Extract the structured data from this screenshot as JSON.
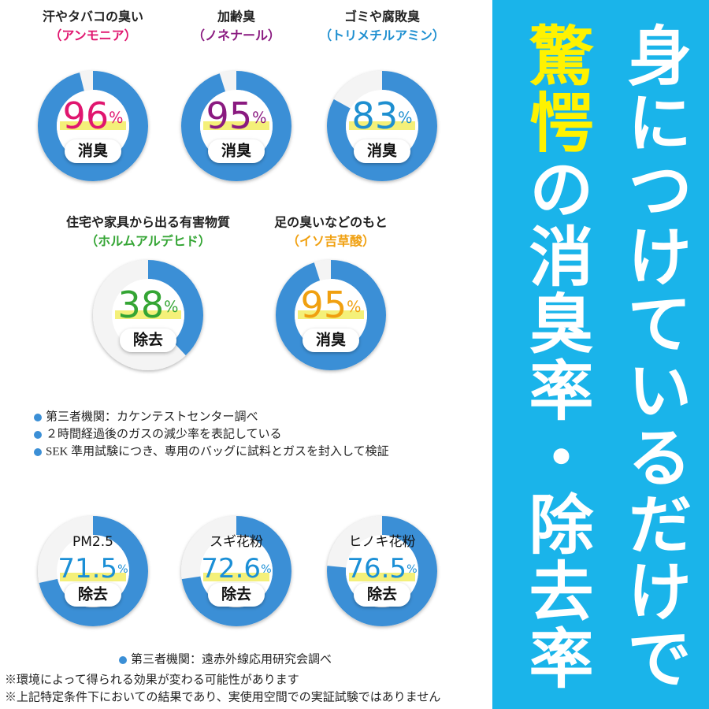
{
  "chart_data": [
    {
      "type": "donut",
      "title": "汗やタバコの臭い",
      "subtitle": "（アンモニア）",
      "value": 96,
      "unit": "%",
      "label": "消臭",
      "color": "#3b8fd6",
      "text_color": "#e0166f"
    },
    {
      "type": "donut",
      "title": "加齢臭",
      "subtitle": "（ノネナール）",
      "value": 95,
      "unit": "%",
      "label": "消臭",
      "color": "#3b8fd6",
      "text_color": "#8a1a80"
    },
    {
      "type": "donut",
      "title": "ゴミや腐敗臭",
      "subtitle": "（トリメチルアミン）",
      "value": 83,
      "unit": "%",
      "label": "消臭",
      "color": "#3b8fd6",
      "text_color": "#1e8fd0"
    },
    {
      "type": "donut",
      "title": "住宅や家具から出る有害物質",
      "subtitle": "（ホルムアルデヒド）",
      "value": 38,
      "unit": "%",
      "label": "除去",
      "color": "#3b8fd6",
      "text_color": "#34a534"
    },
    {
      "type": "donut",
      "title": "足の臭いなどのもと",
      "subtitle": "（イソ吉草酸）",
      "value": 95,
      "unit": "%",
      "label": "消臭",
      "color": "#3b8fd6",
      "text_color": "#f0a010"
    },
    {
      "type": "donut",
      "title": "PM2.5",
      "value": 71.5,
      "unit": "%",
      "label": "除去",
      "color": "#3b8fd6",
      "text_color": "#1b8fd6"
    },
    {
      "type": "donut",
      "title": "スギ花粉",
      "value": 72.6,
      "unit": "%",
      "label": "除去",
      "color": "#3b8fd6",
      "text_color": "#1b8fd6"
    },
    {
      "type": "donut",
      "title": "ヒノキ花粉",
      "value": 76.5,
      "unit": "%",
      "label": "除去",
      "color": "#3b8fd6",
      "text_color": "#1b8fd6"
    }
  ],
  "notes_a": [
    "第三者機関：カケンテストセンター調べ",
    "２時間経過後のガスの減少率を表記している",
    "SEK 準用試験につき、専用のバッグに試料とガスを封入して検証"
  ],
  "notes_b": [
    "第三者機関：遠赤外線応用研究会調べ"
  ],
  "disclaimers": [
    "※環境によって得られる効果が変わる可能性があります",
    "※上記特定条件下においての結果であり、実使用空間での実証試験ではありません"
  ],
  "banner": {
    "line1": "身につけているだけで",
    "highlight": "驚愕",
    "line2": "の消臭率・除去率"
  }
}
